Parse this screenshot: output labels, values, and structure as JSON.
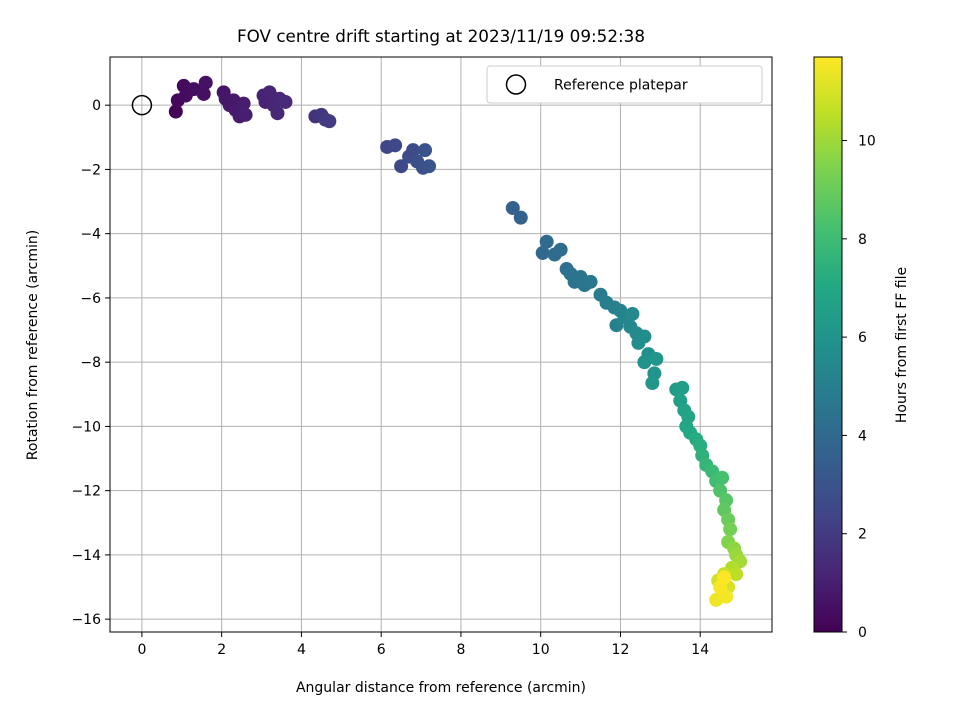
{
  "chart_data": {
    "type": "scatter",
    "title": "FOV centre drift starting at 2023/11/19 09:52:38",
    "xlabel": "Angular distance from reference (arcmin)",
    "ylabel": "Rotation from reference (arcmin)",
    "xlim": [
      -0.8,
      15.8
    ],
    "ylim": [
      -16.4,
      1.5
    ],
    "xticks": [
      0,
      2,
      4,
      6,
      8,
      10,
      12,
      14
    ],
    "yticks": [
      0,
      -2,
      -4,
      -6,
      -8,
      -10,
      -12,
      -14,
      -16
    ],
    "grid": true,
    "legend": {
      "position": "top-right",
      "entries": [
        "Reference platepar"
      ]
    },
    "reference_point": {
      "x": 0,
      "y": 0
    },
    "colorbar": {
      "label": "Hours from first FF file",
      "range": [
        0,
        11.7
      ],
      "ticks": [
        0,
        2,
        4,
        6,
        8,
        10
      ],
      "colormap": "viridis"
    },
    "series": [
      {
        "points": [
          {
            "x": 0.85,
            "y": -0.2,
            "c": 0.1
          },
          {
            "x": 0.9,
            "y": 0.15,
            "c": 0.2
          },
          {
            "x": 1.05,
            "y": 0.6,
            "c": 0.3
          },
          {
            "x": 1.1,
            "y": 0.3,
            "c": 0.35
          },
          {
            "x": 1.3,
            "y": 0.5,
            "c": 0.45
          },
          {
            "x": 1.55,
            "y": 0.35,
            "c": 0.5
          },
          {
            "x": 1.6,
            "y": 0.7,
            "c": 0.55
          },
          {
            "x": 2.05,
            "y": 0.4,
            "c": 0.65
          },
          {
            "x": 2.1,
            "y": 0.2,
            "c": 0.7
          },
          {
            "x": 2.2,
            "y": 0.0,
            "c": 0.75
          },
          {
            "x": 2.3,
            "y": 0.15,
            "c": 0.8
          },
          {
            "x": 2.35,
            "y": -0.15,
            "c": 0.85
          },
          {
            "x": 2.45,
            "y": -0.35,
            "c": 0.9
          },
          {
            "x": 2.55,
            "y": 0.05,
            "c": 0.95
          },
          {
            "x": 2.6,
            "y": -0.3,
            "c": 1.0
          },
          {
            "x": 3.05,
            "y": 0.3,
            "c": 1.1
          },
          {
            "x": 3.1,
            "y": 0.1,
            "c": 1.15
          },
          {
            "x": 3.2,
            "y": 0.4,
            "c": 1.2
          },
          {
            "x": 3.3,
            "y": 0.0,
            "c": 1.25
          },
          {
            "x": 3.4,
            "y": -0.25,
            "c": 1.3
          },
          {
            "x": 3.45,
            "y": 0.2,
            "c": 1.35
          },
          {
            "x": 3.6,
            "y": 0.1,
            "c": 1.4
          },
          {
            "x": 4.35,
            "y": -0.35,
            "c": 1.7
          },
          {
            "x": 4.5,
            "y": -0.3,
            "c": 1.8
          },
          {
            "x": 4.6,
            "y": -0.45,
            "c": 1.9
          },
          {
            "x": 4.7,
            "y": -0.5,
            "c": 2.0
          },
          {
            "x": 6.15,
            "y": -1.3,
            "c": 2.4
          },
          {
            "x": 6.35,
            "y": -1.25,
            "c": 2.5
          },
          {
            "x": 6.5,
            "y": -1.9,
            "c": 2.6
          },
          {
            "x": 6.7,
            "y": -1.6,
            "c": 2.65
          },
          {
            "x": 6.8,
            "y": -1.4,
            "c": 2.7
          },
          {
            "x": 6.9,
            "y": -1.75,
            "c": 2.8
          },
          {
            "x": 7.05,
            "y": -1.95,
            "c": 2.9
          },
          {
            "x": 7.1,
            "y": -1.4,
            "c": 3.0
          },
          {
            "x": 7.2,
            "y": -1.9,
            "c": 3.05
          },
          {
            "x": 9.3,
            "y": -3.2,
            "c": 3.6
          },
          {
            "x": 9.5,
            "y": -3.5,
            "c": 3.7
          },
          {
            "x": 10.05,
            "y": -4.6,
            "c": 4.0
          },
          {
            "x": 10.15,
            "y": -4.25,
            "c": 4.05
          },
          {
            "x": 10.35,
            "y": -4.65,
            "c": 4.1
          },
          {
            "x": 10.5,
            "y": -4.5,
            "c": 4.15
          },
          {
            "x": 10.65,
            "y": -5.1,
            "c": 4.3
          },
          {
            "x": 10.75,
            "y": -5.25,
            "c": 4.4
          },
          {
            "x": 10.85,
            "y": -5.5,
            "c": 4.45
          },
          {
            "x": 11.0,
            "y": -5.35,
            "c": 4.5
          },
          {
            "x": 11.1,
            "y": -5.6,
            "c": 4.6
          },
          {
            "x": 11.25,
            "y": -5.5,
            "c": 4.7
          },
          {
            "x": 11.5,
            "y": -5.9,
            "c": 4.8
          },
          {
            "x": 11.65,
            "y": -6.15,
            "c": 4.9
          },
          {
            "x": 11.85,
            "y": -6.3,
            "c": 5.0
          },
          {
            "x": 11.9,
            "y": -6.85,
            "c": 5.1
          },
          {
            "x": 12.0,
            "y": -6.4,
            "c": 5.2
          },
          {
            "x": 12.1,
            "y": -6.6,
            "c": 5.3
          },
          {
            "x": 12.25,
            "y": -6.9,
            "c": 5.4
          },
          {
            "x": 12.3,
            "y": -6.5,
            "c": 5.45
          },
          {
            "x": 12.4,
            "y": -7.1,
            "c": 5.5
          },
          {
            "x": 12.45,
            "y": -7.4,
            "c": 5.6
          },
          {
            "x": 12.6,
            "y": -7.2,
            "c": 5.7
          },
          {
            "x": 12.7,
            "y": -7.75,
            "c": 5.8
          },
          {
            "x": 12.6,
            "y": -8.0,
            "c": 5.9
          },
          {
            "x": 12.85,
            "y": -8.35,
            "c": 6.0
          },
          {
            "x": 12.9,
            "y": -7.9,
            "c": 6.1
          },
          {
            "x": 12.8,
            "y": -8.65,
            "c": 6.15
          },
          {
            "x": 13.4,
            "y": -8.85,
            "c": 6.4
          },
          {
            "x": 13.55,
            "y": -8.8,
            "c": 6.5
          },
          {
            "x": 13.5,
            "y": -9.2,
            "c": 6.6
          },
          {
            "x": 13.6,
            "y": -9.5,
            "c": 6.7
          },
          {
            "x": 13.7,
            "y": -9.7,
            "c": 6.8
          },
          {
            "x": 13.65,
            "y": -10.0,
            "c": 6.9
          },
          {
            "x": 13.75,
            "y": -10.2,
            "c": 7.0
          },
          {
            "x": 13.9,
            "y": -10.4,
            "c": 7.2
          },
          {
            "x": 14.0,
            "y": -10.6,
            "c": 7.3
          },
          {
            "x": 14.05,
            "y": -10.9,
            "c": 7.5
          },
          {
            "x": 14.15,
            "y": -11.2,
            "c": 7.7
          },
          {
            "x": 14.3,
            "y": -11.4,
            "c": 7.9
          },
          {
            "x": 14.4,
            "y": -11.7,
            "c": 8.1
          },
          {
            "x": 14.55,
            "y": -11.6,
            "c": 8.2
          },
          {
            "x": 14.5,
            "y": -12.0,
            "c": 8.4
          },
          {
            "x": 14.65,
            "y": -12.3,
            "c": 8.6
          },
          {
            "x": 14.6,
            "y": -12.6,
            "c": 8.8
          },
          {
            "x": 14.7,
            "y": -12.9,
            "c": 9.0
          },
          {
            "x": 14.75,
            "y": -13.2,
            "c": 9.2
          },
          {
            "x": 14.7,
            "y": -13.6,
            "c": 9.5
          },
          {
            "x": 14.85,
            "y": -13.8,
            "c": 9.7
          },
          {
            "x": 14.9,
            "y": -14.0,
            "c": 9.9
          },
          {
            "x": 15.0,
            "y": -14.2,
            "c": 10.1
          },
          {
            "x": 14.8,
            "y": -14.4,
            "c": 10.3
          },
          {
            "x": 14.9,
            "y": -14.6,
            "c": 10.5
          },
          {
            "x": 14.6,
            "y": -14.6,
            "c": 10.7
          },
          {
            "x": 14.45,
            "y": -14.8,
            "c": 10.9
          },
          {
            "x": 14.7,
            "y": -15.0,
            "c": 11.0
          },
          {
            "x": 14.55,
            "y": -15.2,
            "c": 11.2
          },
          {
            "x": 14.4,
            "y": -15.4,
            "c": 11.4
          },
          {
            "x": 14.65,
            "y": -15.3,
            "c": 11.5
          },
          {
            "x": 14.5,
            "y": -15.0,
            "c": 11.6
          },
          {
            "x": 14.6,
            "y": -14.7,
            "c": 11.7
          }
        ]
      }
    ]
  }
}
